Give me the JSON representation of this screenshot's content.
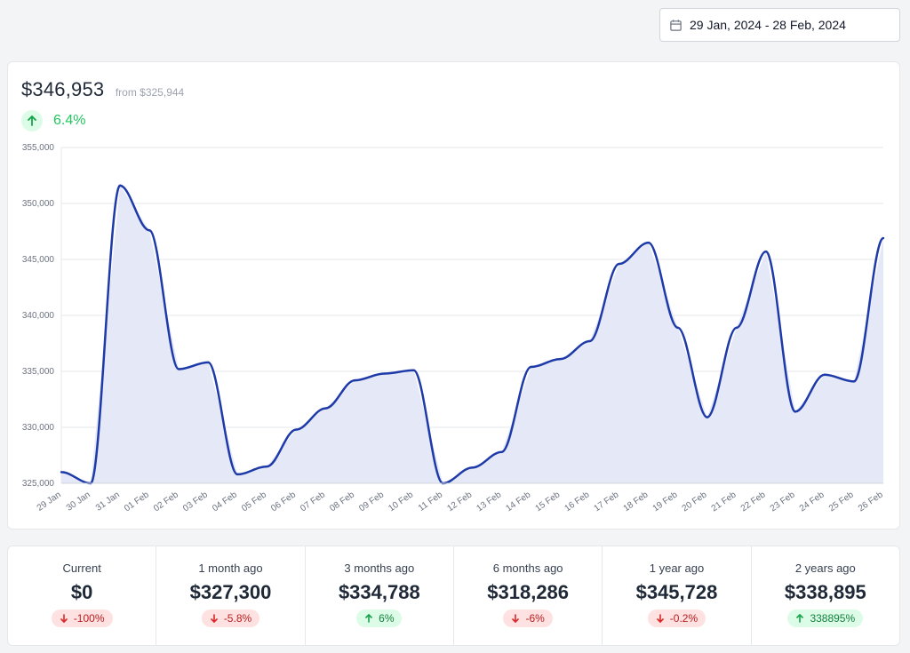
{
  "date_range": {
    "label": "29 Jan, 2024 - 28 Feb, 2024",
    "icon": "calendar-icon"
  },
  "summary": {
    "value": "$346,953",
    "from_text": "from $325,944",
    "change": "6.4%",
    "direction": "up",
    "icon": "arrow-up-icon"
  },
  "colors": {
    "line": "#1e3aa8",
    "fill": "#e4e8f7",
    "up": "#22c55e",
    "down": "#ef4444"
  },
  "chart_data": {
    "type": "area",
    "title": "",
    "xlabel": "",
    "ylabel": "",
    "ylim": [
      325000,
      355000
    ],
    "yticks": [
      "325,000",
      "330,000",
      "335,000",
      "340,000",
      "345,000",
      "350,000",
      "355,000"
    ],
    "ytick_values": [
      325000,
      330000,
      335000,
      340000,
      345000,
      350000,
      355000
    ],
    "grid": true,
    "categories": [
      "29 Jan",
      "30 Jan",
      "31 Jan",
      "01 Feb",
      "02 Feb",
      "03 Feb",
      "04 Feb",
      "05 Feb",
      "06 Feb",
      "07 Feb",
      "08 Feb",
      "09 Feb",
      "10 Feb",
      "11 Feb",
      "12 Feb",
      "13 Feb",
      "14 Feb",
      "15 Feb",
      "16 Feb",
      "17 Feb",
      "18 Feb",
      "19 Feb",
      "20 Feb",
      "21 Feb",
      "22 Feb",
      "23 Feb",
      "24 Feb",
      "25 Feb",
      "26 Feb"
    ],
    "values": [
      326000,
      325000,
      351600,
      347600,
      335200,
      335800,
      325800,
      326500,
      329800,
      331700,
      334200,
      334800,
      335100,
      325000,
      326400,
      327800,
      335400,
      336100,
      337700,
      344600,
      346500,
      338900,
      330900,
      338900,
      345700,
      331400,
      334700,
      334100,
      346900
    ]
  },
  "stats": [
    {
      "label": "Current",
      "value": "$0",
      "change": "-100%",
      "direction": "down"
    },
    {
      "label": "1 month ago",
      "value": "$327,300",
      "change": "-5.8%",
      "direction": "down"
    },
    {
      "label": "3 months ago",
      "value": "$334,788",
      "change": "6%",
      "direction": "up"
    },
    {
      "label": "6 months ago",
      "value": "$318,286",
      "change": "-6%",
      "direction": "down"
    },
    {
      "label": "1 year ago",
      "value": "$345,728",
      "change": "-0.2%",
      "direction": "down"
    },
    {
      "label": "2 years ago",
      "value": "$338,895",
      "change": "338895%",
      "direction": "up"
    }
  ]
}
